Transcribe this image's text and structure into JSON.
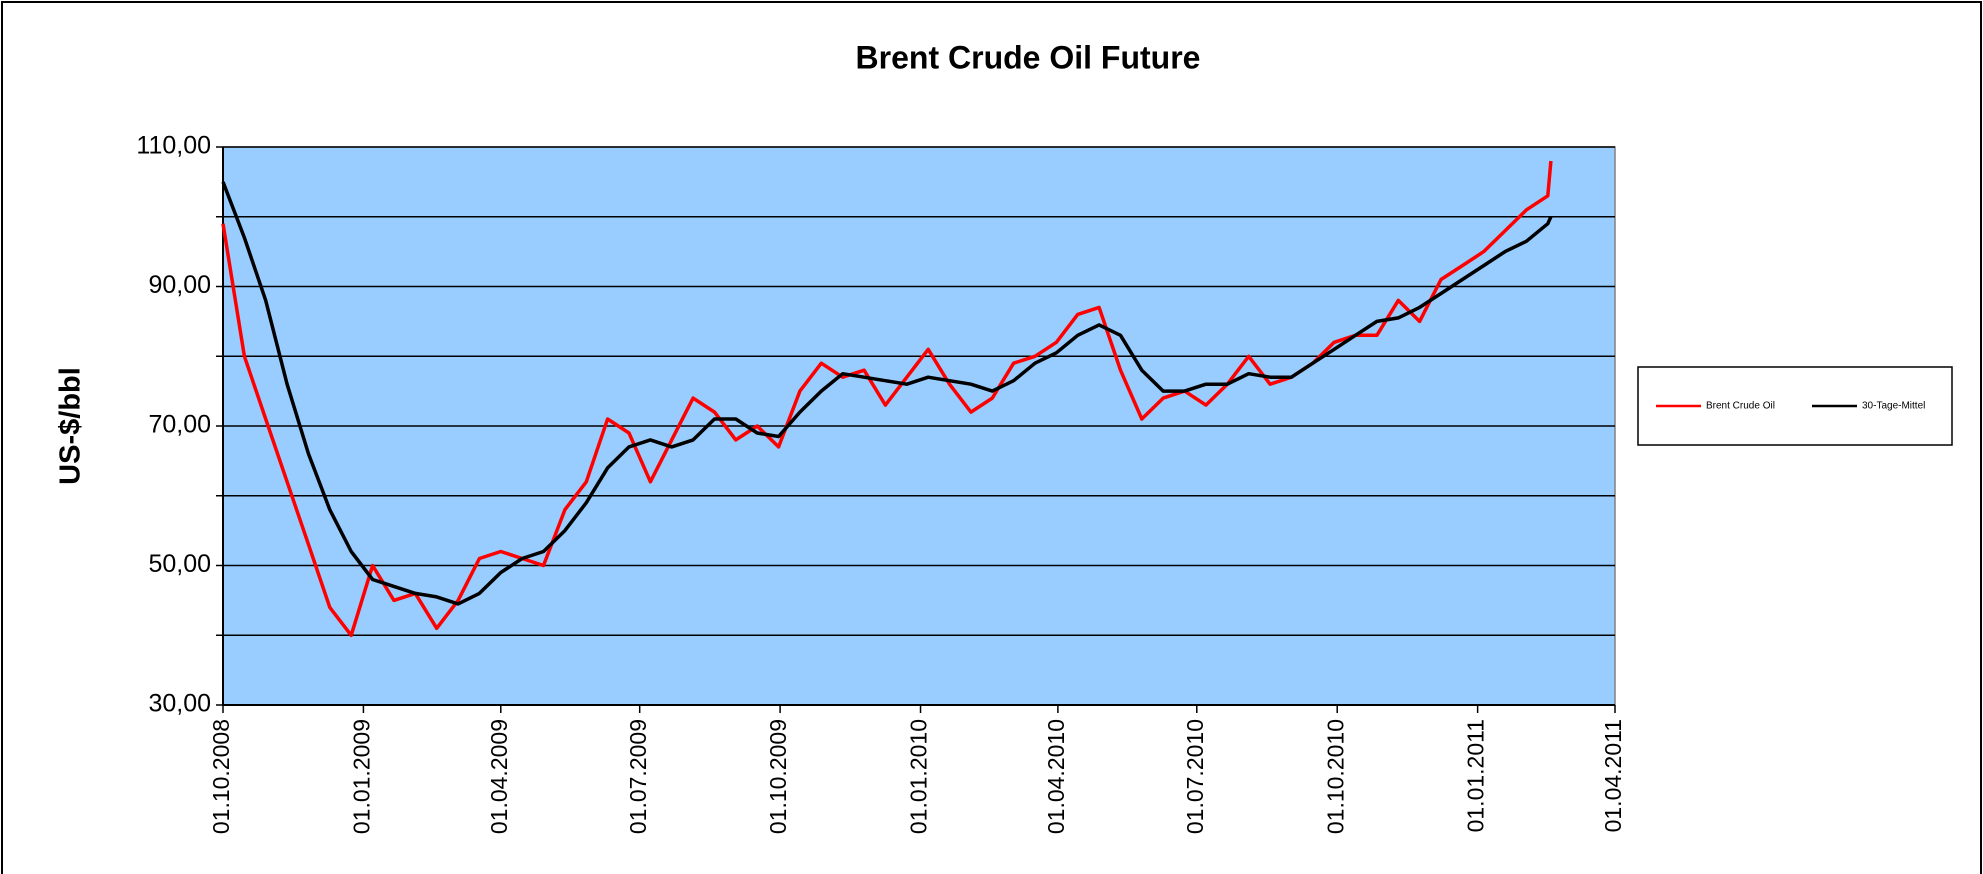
{
  "chart_data": {
    "type": "line",
    "title": "Brent Crude Oil Future",
    "y_label": "US-$/bbl",
    "x": [
      "01.10.2008",
      "15.10.2008",
      "29.10.2008",
      "12.11.2008",
      "26.11.2008",
      "10.12.2008",
      "24.12.2008",
      "07.01.2009",
      "21.01.2009",
      "04.02.2009",
      "18.02.2009",
      "04.03.2009",
      "18.03.2009",
      "01.04.2009",
      "15.04.2009",
      "29.04.2009",
      "13.05.2009",
      "27.05.2009",
      "10.06.2009",
      "24.06.2009",
      "08.07.2009",
      "22.07.2009",
      "05.08.2009",
      "19.08.2009",
      "02.09.2009",
      "16.09.2009",
      "30.09.2009",
      "14.10.2009",
      "28.10.2009",
      "11.11.2009",
      "25.11.2009",
      "09.12.2009",
      "23.12.2009",
      "06.01.2010",
      "20.01.2010",
      "03.02.2010",
      "17.02.2010",
      "03.03.2010",
      "17.03.2010",
      "31.03.2010",
      "14.04.2010",
      "28.04.2010",
      "12.05.2010",
      "26.05.2010",
      "09.06.2010",
      "23.06.2010",
      "07.07.2010",
      "21.07.2010",
      "04.08.2010",
      "18.08.2010",
      "01.09.2010",
      "15.09.2010",
      "29.09.2010",
      "13.10.2010",
      "27.10.2010",
      "10.11.2010",
      "24.11.2010",
      "08.12.2010",
      "22.12.2010",
      "05.01.2011",
      "19.01.2011",
      "02.02.2011",
      "16.02.2011",
      "18.02.2011"
    ],
    "series": [
      {
        "name": "Brent Crude Oil",
        "color": "#ff0000",
        "values": [
          99,
          80,
          71,
          62,
          53,
          44,
          40,
          50,
          45,
          46,
          41,
          45,
          51,
          52,
          51,
          50,
          58,
          62,
          71,
          69,
          62,
          68,
          74,
          72,
          68,
          70,
          67,
          75,
          79,
          77,
          78,
          73,
          77,
          81,
          76,
          72,
          74,
          79,
          80,
          82,
          86,
          87,
          78,
          71,
          74,
          75,
          73,
          76,
          80,
          76,
          77,
          79,
          82,
          83,
          83,
          88,
          85,
          91,
          93,
          95,
          98,
          101,
          103,
          108
        ]
      },
      {
        "name": "30-Tage-Mittel",
        "color": "#000000",
        "values": [
          105,
          97,
          88,
          76,
          66,
          58,
          52,
          48,
          47,
          46,
          45.5,
          44.5,
          46,
          49,
          51,
          52,
          55,
          59,
          64,
          67,
          68,
          67,
          68,
          71,
          71,
          69,
          68.5,
          72,
          75,
          77.5,
          77,
          76.5,
          76,
          77,
          76.5,
          76,
          75,
          76.5,
          79,
          80.5,
          83,
          84.5,
          83,
          78,
          75,
          75,
          76,
          76,
          77.5,
          77,
          77,
          79,
          81,
          83,
          85,
          85.5,
          87,
          89,
          91,
          93,
          95,
          96.5,
          99,
          100
        ]
      }
    ],
    "xlim": [
      "01.10.2008",
      "01.04.2011"
    ],
    "xticks": [
      "01.10.2008",
      "01.01.2009",
      "01.04.2009",
      "01.07.2009",
      "01.10.2009",
      "01.01.2010",
      "01.04.2010",
      "01.07.2010",
      "01.10.2010",
      "01.01.2011",
      "01.04.2011"
    ],
    "ylim": [
      30,
      110
    ],
    "yticks": [
      {
        "value": 30,
        "label": "30,00"
      },
      {
        "value": 50,
        "label": "50,00"
      },
      {
        "value": 70,
        "label": "70,00"
      },
      {
        "value": 90,
        "label": "90,00"
      },
      {
        "value": 110,
        "label": "110,00"
      }
    ],
    "yminor": [
      40,
      60,
      80,
      100
    ],
    "grid": true,
    "plot_background": "#99ccff",
    "legend": "right"
  }
}
